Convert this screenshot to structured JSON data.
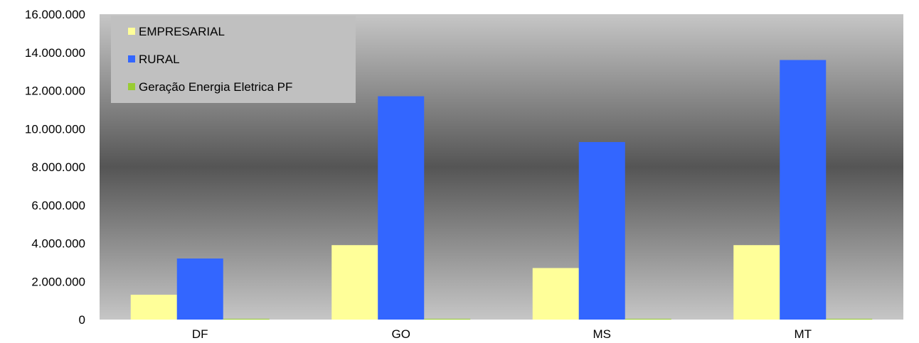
{
  "chart_data": {
    "type": "bar",
    "title": "",
    "xlabel": "",
    "ylabel": "",
    "categories": [
      "DF",
      "GO",
      "MS",
      "MT"
    ],
    "series": [
      {
        "name": "EMPRESARIAL",
        "color": "#ffff99",
        "values": [
          1300000,
          3900000,
          2700000,
          3900000
        ]
      },
      {
        "name": "RURAL",
        "color": "#3366ff",
        "values": [
          3200000,
          11700000,
          9300000,
          13600000
        ]
      },
      {
        "name": "Geração Energia Eletrica PF",
        "color": "#99cc33",
        "values": [
          40000,
          40000,
          40000,
          40000
        ]
      }
    ],
    "ylim": [
      0,
      16000000
    ],
    "y_ticks": [
      0,
      2000000,
      4000000,
      6000000,
      8000000,
      10000000,
      12000000,
      14000000,
      16000000
    ],
    "y_tick_labels": [
      "0",
      "2.000.000",
      "4.000.000",
      "6.000.000",
      "8.000.000",
      "10.000.000",
      "12.000.000",
      "14.000.000",
      "16.000.000"
    ],
    "legend_position": "top-left",
    "grid": false,
    "background": "vertical gradient light gray to dark gray to light gray"
  }
}
